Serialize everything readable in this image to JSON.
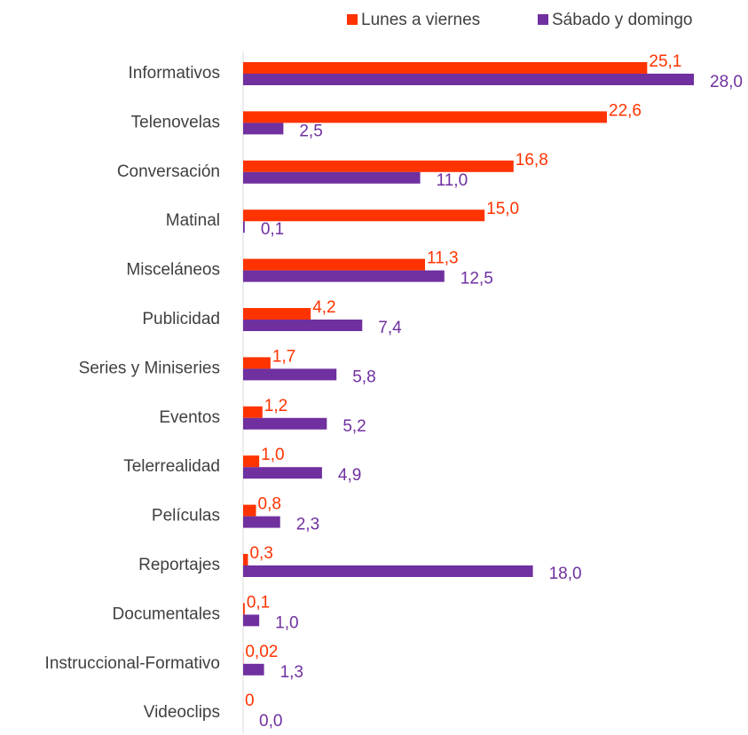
{
  "chart_data": {
    "type": "bar",
    "orientation": "horizontal",
    "categories": [
      "Informativos",
      "Telenovelas",
      "Conversación",
      "Matinal",
      "Misceláneos",
      "Publicidad",
      "Series y Miniseries",
      "Eventos",
      "Telerrealidad",
      "Películas",
      "Reportajes",
      "Documentales",
      "Instruccional-Formativo",
      "Videoclips"
    ],
    "series": [
      {
        "name": "Lunes a viernes",
        "color": "#ff3300",
        "values": [
          25.1,
          22.6,
          16.8,
          15.0,
          11.3,
          4.2,
          1.7,
          1.2,
          1.0,
          0.8,
          0.3,
          0.1,
          0.02,
          0
        ],
        "value_labels": [
          "25,1",
          "22,6",
          "16,8",
          "15,0",
          "11,3",
          "4,2",
          "1,7",
          "1,2",
          "1,0",
          "0,8",
          "0,3",
          "0,1",
          "0,02",
          "0"
        ]
      },
      {
        "name": "Sábado y domingo",
        "color": "#7030a0",
        "values": [
          28.0,
          2.5,
          11.0,
          0.1,
          12.5,
          7.4,
          5.8,
          5.2,
          4.9,
          2.3,
          18.0,
          1.0,
          1.3,
          0.0
        ],
        "value_labels": [
          "28,0",
          "2,5",
          "11,0",
          "0,1",
          "12,5",
          "7,4",
          "5,8",
          "5,2",
          "4,9",
          "2,3",
          "18,0",
          "1,0",
          "1,3",
          "0,0"
        ]
      }
    ],
    "xlim": [
      0,
      28
    ],
    "legend": "top"
  }
}
